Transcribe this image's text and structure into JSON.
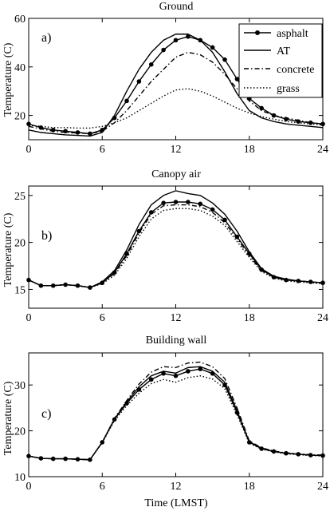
{
  "chart_data": [
    {
      "type": "line",
      "title": "Ground",
      "panel_label": "a)",
      "ylabel": "Temperature (C)",
      "xlabel": "",
      "xlim": [
        0,
        24
      ],
      "ylim": [
        10,
        60
      ],
      "xticks": [
        0,
        6,
        12,
        18,
        24
      ],
      "yticks": [
        20,
        40,
        60
      ],
      "legend_position": "top-right",
      "x": [
        0,
        1,
        2,
        3,
        4,
        5,
        6,
        7,
        8,
        9,
        10,
        11,
        12,
        13,
        14,
        15,
        16,
        17,
        18,
        19,
        20,
        21,
        22,
        23,
        24
      ],
      "series": [
        {
          "name": "asphalt",
          "style": "solid-dot",
          "values": [
            16.5,
            15,
            14,
            13.5,
            13,
            12.5,
            14,
            19,
            26,
            34,
            41,
            47,
            51,
            52.5,
            51,
            48,
            43,
            35,
            27,
            23,
            20,
            18.5,
            17.5,
            17,
            16.5
          ]
        },
        {
          "name": "AT",
          "style": "solid",
          "values": [
            14,
            13,
            12.5,
            12,
            11.8,
            11.5,
            13,
            20,
            30,
            39,
            46,
            51,
            53.5,
            53.5,
            51,
            46,
            38,
            29,
            22,
            19,
            17.5,
            16.5,
            16,
            15.5,
            15
          ]
        },
        {
          "name": "concrete",
          "style": "dashdot",
          "values": [
            15.5,
            14.5,
            13.5,
            13,
            12.8,
            12.5,
            13.5,
            17,
            22,
            28,
            34,
            39,
            44,
            46,
            45,
            42,
            37,
            31,
            26,
            22,
            20,
            19,
            18,
            17,
            16.5
          ]
        },
        {
          "name": "grass",
          "style": "dotted",
          "values": [
            16,
            15.5,
            15,
            15,
            14.8,
            14.8,
            15.5,
            17,
            19,
            22,
            25,
            28,
            30.5,
            31,
            30,
            28,
            25.5,
            23,
            21,
            19.5,
            18.5,
            17.5,
            17,
            16.5,
            16
          ]
        }
      ]
    },
    {
      "type": "line",
      "title": "Canopy air",
      "panel_label": "b)",
      "ylabel": "Temperature (C)",
      "xlabel": "",
      "xlim": [
        0,
        24
      ],
      "ylim": [
        13,
        26
      ],
      "xticks": [
        0,
        6,
        12,
        18,
        24
      ],
      "yticks": [
        15,
        20,
        25
      ],
      "x": [
        0,
        1,
        2,
        3,
        4,
        5,
        6,
        7,
        8,
        9,
        10,
        11,
        12,
        13,
        14,
        15,
        16,
        17,
        18,
        19,
        20,
        21,
        22,
        23,
        24
      ],
      "series": [
        {
          "name": "asphalt",
          "style": "solid-dot",
          "values": [
            16,
            15.4,
            15.4,
            15.5,
            15.4,
            15.2,
            15.7,
            16.8,
            18.8,
            21.2,
            23.2,
            24.2,
            24.3,
            24.3,
            24.1,
            23.5,
            22.4,
            20.6,
            18.8,
            17.1,
            16.3,
            16,
            15.9,
            15.8,
            15.7
          ]
        },
        {
          "name": "AT",
          "style": "solid",
          "values": [
            16,
            15.4,
            15.4,
            15.5,
            15.4,
            15.2,
            15.8,
            17,
            19.2,
            21.9,
            24,
            25,
            25.5,
            25.2,
            25,
            24.2,
            23,
            21.2,
            19,
            17.2,
            16.4,
            16.1,
            15.9,
            15.8,
            15.7
          ]
        },
        {
          "name": "concrete",
          "style": "dashdot",
          "values": [
            16,
            15.4,
            15.4,
            15.5,
            15.4,
            15.2,
            15.7,
            16.7,
            18.6,
            21,
            23,
            23.9,
            24,
            24,
            23.8,
            23.2,
            22.1,
            20.4,
            18.6,
            17,
            16.3,
            16,
            15.9,
            15.8,
            15.7
          ]
        },
        {
          "name": "grass",
          "style": "dotted",
          "values": [
            16,
            15.4,
            15.4,
            15.5,
            15.4,
            15.2,
            15.6,
            16.5,
            18.3,
            20.6,
            22.5,
            23.4,
            23.6,
            23.6,
            23.4,
            22.8,
            21.8,
            20.1,
            18.4,
            16.9,
            16.2,
            15.9,
            15.8,
            15.7,
            15.6
          ]
        }
      ]
    },
    {
      "type": "line",
      "title": "Building wall",
      "panel_label": "c)",
      "ylabel": "Temperature (C)",
      "xlabel": "Time (LMST)",
      "xlim": [
        0,
        24
      ],
      "ylim": [
        10,
        37
      ],
      "xticks": [
        0,
        6,
        12,
        18,
        24
      ],
      "yticks": [
        10,
        20,
        30
      ],
      "x": [
        0,
        1,
        2,
        3,
        4,
        5,
        6,
        7,
        8,
        9,
        10,
        11,
        12,
        13,
        14,
        15,
        16,
        17,
        18,
        19,
        20,
        21,
        22,
        23,
        24
      ],
      "series": [
        {
          "name": "asphalt",
          "style": "solid-dot",
          "values": [
            14.5,
            14,
            13.9,
            13.9,
            13.8,
            13.7,
            17.5,
            22.5,
            26,
            29,
            31.2,
            32.5,
            32,
            33,
            33.5,
            32.5,
            30,
            24,
            17.5,
            16.1,
            15.5,
            15.1,
            14.9,
            14.7,
            14.6
          ]
        },
        {
          "name": "AT",
          "style": "solid",
          "values": [
            14.5,
            14,
            13.9,
            13.9,
            13.8,
            13.7,
            17.5,
            22.6,
            26.3,
            29.6,
            32,
            33,
            32.6,
            33.8,
            34,
            33,
            30.6,
            24.4,
            17.6,
            16.2,
            15.5,
            15.1,
            14.9,
            14.7,
            14.6
          ]
        },
        {
          "name": "concrete",
          "style": "dashdot",
          "values": [
            14.5,
            14,
            13.9,
            13.9,
            13.8,
            13.7,
            17.5,
            22.7,
            26.6,
            30.2,
            32.8,
            34,
            33.8,
            34.8,
            35,
            34,
            31.4,
            25,
            17.8,
            16.3,
            15.6,
            15.2,
            15,
            14.8,
            14.7
          ]
        },
        {
          "name": "grass",
          "style": "dotted",
          "values": [
            14.5,
            14,
            13.9,
            13.9,
            13.8,
            13.7,
            17.4,
            22.2,
            25.5,
            28.2,
            30.3,
            31.2,
            30.6,
            31.6,
            32,
            31.3,
            29.2,
            23.5,
            17.3,
            16,
            15.4,
            15,
            14.8,
            14.6,
            14.5
          ]
        }
      ]
    }
  ]
}
